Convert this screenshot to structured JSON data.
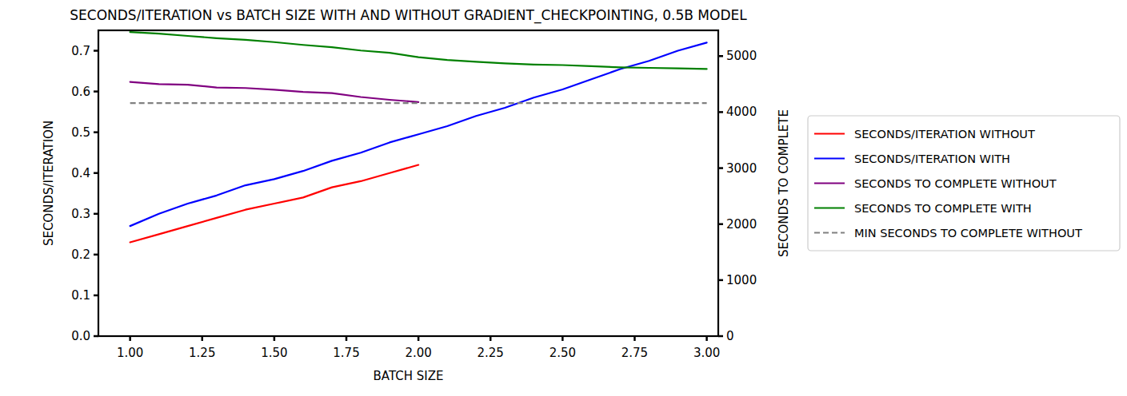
{
  "chart_data": {
    "type": "line",
    "title": "SECONDS/ITERATION vs BATCH SIZE WITH AND WITHOUT GRADIENT_CHECKPOINTING, 0.5B MODEL",
    "x_label": "BATCH SIZE",
    "y_label": "SECONDS/ITERATION",
    "y2_label": "SECONDS TO COMPLETE",
    "x": [
      1.0,
      1.1,
      1.2,
      1.3,
      1.4,
      1.5,
      1.6,
      1.7,
      1.8,
      1.9,
      2.0,
      2.1,
      2.2,
      2.3,
      2.4,
      2.5,
      2.6,
      2.7,
      2.8,
      2.9,
      3.0
    ],
    "xlim": [
      0.89,
      3.04
    ],
    "xticks": [
      {
        "value": 1.0,
        "label": "1.00"
      },
      {
        "value": 1.25,
        "label": "1.25"
      },
      {
        "value": 1.5,
        "label": "1.50"
      },
      {
        "value": 1.75,
        "label": "1.75"
      },
      {
        "value": 2.0,
        "label": "2.00"
      },
      {
        "value": 2.25,
        "label": "2.25"
      },
      {
        "value": 2.5,
        "label": "2.50"
      },
      {
        "value": 2.75,
        "label": "2.75"
      },
      {
        "value": 3.0,
        "label": "3.00"
      }
    ],
    "ylim": [
      0,
      0.75
    ],
    "yticks": [
      {
        "value": 0,
        "label": "0.0"
      },
      0.1,
      0.2,
      0.3,
      0.4,
      0.5,
      0.6,
      0.7
    ],
    "y2lim": [
      0,
      5460
    ],
    "y2ticks": [
      0,
      1000,
      2000,
      3000,
      4000,
      5000
    ],
    "grid": false,
    "legend": "right",
    "series": [
      {
        "name": "SECONDS/ITERATION WITHOUT",
        "color": "#ff0000",
        "line_style": "solid",
        "values": [
          0.23,
          0.25,
          0.27,
          0.29,
          0.31,
          0.325,
          0.34,
          0.365,
          0.38,
          0.4,
          0.42,
          null,
          null,
          null,
          null,
          null,
          null,
          null,
          null,
          null,
          null
        ]
      },
      {
        "name": "SECONDS/ITERATION WITH",
        "color": "#0000ff",
        "line_style": "solid",
        "values": [
          0.27,
          0.3,
          0.325,
          0.345,
          0.37,
          0.385,
          0.405,
          0.43,
          0.45,
          0.475,
          0.495,
          0.515,
          0.54,
          0.56,
          0.585,
          0.605,
          0.63,
          0.655,
          0.675,
          0.7,
          0.72
        ]
      },
      {
        "name": "SECONDS TO COMPLETE WITHOUT",
        "color": "#800080",
        "line_style": "solid",
        "axis": "y2",
        "values": [
          4540,
          4500,
          4490,
          4440,
          4430,
          4400,
          4360,
          4340,
          4270,
          4220,
          4180,
          null,
          null,
          null,
          null,
          null,
          null,
          null,
          null,
          null,
          null
        ]
      },
      {
        "name": "SECONDS TO COMPLETE WITH",
        "color": "#008000",
        "line_style": "solid",
        "axis": "y2",
        "values": [
          5430,
          5400,
          5360,
          5320,
          5290,
          5250,
          5200,
          5160,
          5100,
          5060,
          4980,
          4930,
          4900,
          4870,
          4850,
          4840,
          4820,
          4800,
          4790,
          4780,
          4770
        ]
      },
      {
        "name": "MIN SECONDS TO COMPLETE WITHOUT",
        "color": "#808080",
        "line_style": "dashed",
        "axis": "y2",
        "values": [
          4160,
          4160,
          4160,
          4160,
          4160,
          4160,
          4160,
          4160,
          4160,
          4160,
          4160,
          4160,
          4160,
          4160,
          4160,
          4160,
          4160,
          4160,
          4160,
          4160,
          4160
        ]
      }
    ]
  }
}
